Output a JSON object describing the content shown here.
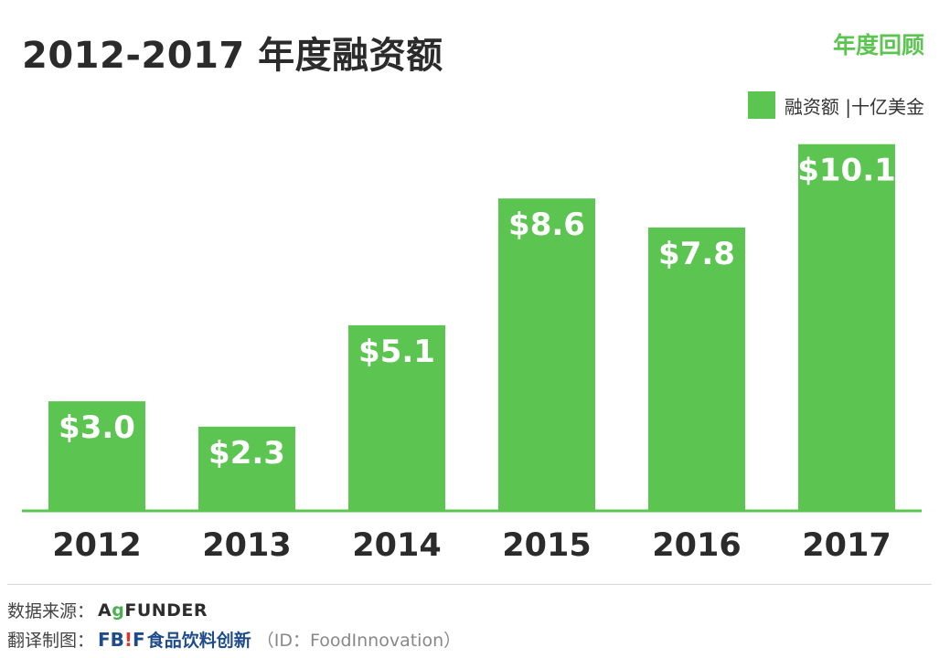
{
  "header": {
    "title": "2012-2017 年度融资额",
    "tag": "年度回顾"
  },
  "legend": {
    "label": "融资额 |十亿美金"
  },
  "chart_data": {
    "type": "bar",
    "categories": [
      "2012",
      "2013",
      "2014",
      "2015",
      "2016",
      "2017"
    ],
    "values": [
      3.0,
      2.3,
      5.1,
      8.6,
      7.8,
      10.1
    ],
    "data_labels": [
      "$3.0",
      "$2.3",
      "$5.1",
      "$8.6",
      "$7.8",
      "$10.1"
    ],
    "series": [
      {
        "name": "融资额 |十亿美金",
        "values": [
          3.0,
          2.3,
          5.1,
          8.6,
          7.8,
          10.1
        ]
      }
    ],
    "ylim": [
      0,
      10.8
    ],
    "grid": false,
    "legend_position": "top-right",
    "bar_color": "#5cc551",
    "label_color": "#ffffff"
  },
  "footer": {
    "source_label": "数据来源：",
    "source_logo_a": "A",
    "source_logo_leaf": "g",
    "source_logo_rest": "FUNDER",
    "translation_label": "翻译制图：",
    "fbif_f": "FB",
    "fbif_bang": "!",
    "fbif_f2": "F",
    "fbif_cn": "食品饮料创新",
    "fbif_id": "（ID：FoodInnovation）"
  }
}
